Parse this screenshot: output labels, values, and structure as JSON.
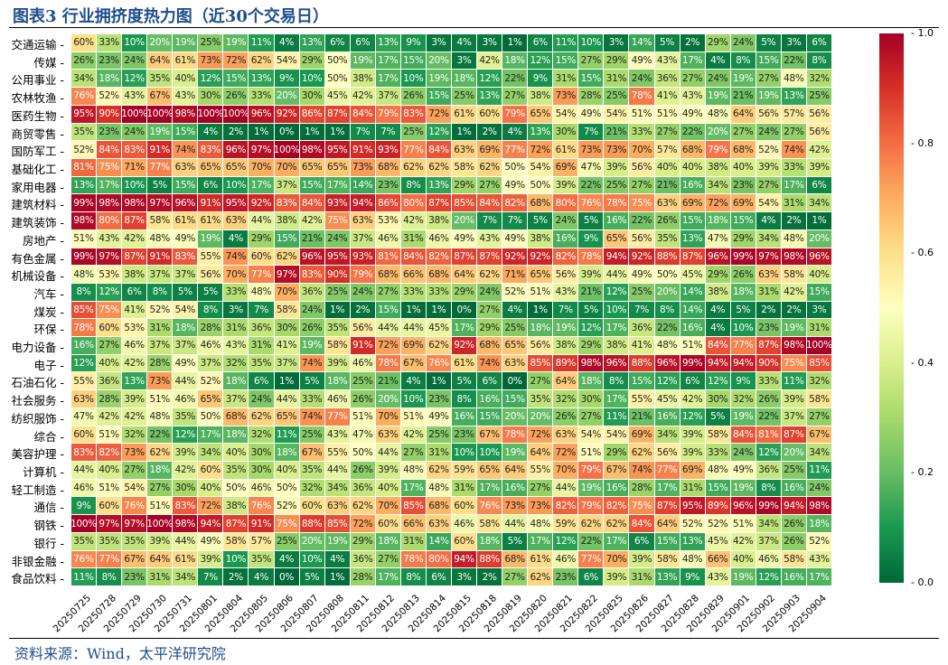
{
  "header": {
    "title": "图表3 行业拥挤度热力图（近30个交易日）"
  },
  "footer": {
    "source": "资料来源：Wind，太平洋研究院"
  },
  "chart_data": {
    "type": "heatmap",
    "title": "",
    "colormap": "RdYlGn_r",
    "vrange": [
      0,
      1
    ],
    "colorbar_ticks": [
      "0.0",
      "0.2",
      "0.4",
      "0.6",
      "0.8",
      "1.0"
    ],
    "x": [
      "20250725",
      "20250728",
      "20250729",
      "20250730",
      "20250731",
      "20250801",
      "20250804",
      "20250805",
      "20250806",
      "20250807",
      "20250808",
      "20250811",
      "20250812",
      "20250813",
      "20250814",
      "20250815",
      "20250818",
      "20250819",
      "20250820",
      "20250821",
      "20250822",
      "20250825",
      "20250826",
      "20250827",
      "20250828",
      "20250829",
      "20250901",
      "20250902",
      "20250903",
      "20250904"
    ],
    "y": [
      "交通运输",
      "传媒",
      "公用事业",
      "农林牧渔",
      "医药生物",
      "商贸零售",
      "国防军工",
      "基础化工",
      "家用电器",
      "建筑材料",
      "建筑装饰",
      "房地产",
      "有色金属",
      "机械设备",
      "汽车",
      "煤炭",
      "环保",
      "电力设备",
      "电子",
      "石油石化",
      "社会服务",
      "纺织服饰",
      "综合",
      "美容护理",
      "计算机",
      "轻工制造",
      "通信",
      "钢铁",
      "银行",
      "非银金融",
      "食品饮料"
    ],
    "values_pct": [
      [
        60,
        33,
        10,
        20,
        19,
        25,
        19,
        11,
        4,
        13,
        6,
        6,
        13,
        9,
        3,
        4,
        3,
        1,
        6,
        11,
        10,
        3,
        14,
        5,
        2,
        29,
        24,
        5,
        3,
        6
      ],
      [
        26,
        23,
        24,
        64,
        61,
        73,
        72,
        62,
        54,
        29,
        50,
        19,
        17,
        15,
        20,
        3,
        42,
        18,
        12,
        15,
        27,
        29,
        49,
        43,
        17,
        4,
        8,
        15,
        22,
        8
      ],
      [
        34,
        18,
        12,
        35,
        40,
        12,
        15,
        13,
        9,
        10,
        50,
        38,
        17,
        10,
        19,
        18,
        12,
        22,
        9,
        31,
        15,
        31,
        24,
        36,
        27,
        24,
        19,
        27,
        48,
        32
      ],
      [
        76,
        52,
        43,
        67,
        43,
        30,
        26,
        33,
        20,
        30,
        45,
        42,
        37,
        26,
        15,
        25,
        13,
        27,
        38,
        73,
        28,
        25,
        78,
        41,
        43,
        19,
        21,
        19,
        13,
        25
      ],
      [
        95,
        90,
        100,
        100,
        98,
        100,
        100,
        96,
        92,
        86,
        87,
        84,
        79,
        83,
        72,
        61,
        60,
        79,
        65,
        54,
        49,
        54,
        51,
        51,
        49,
        48,
        64,
        56,
        57,
        56
      ],
      [
        35,
        23,
        24,
        19,
        15,
        4,
        2,
        1,
        0,
        1,
        1,
        7,
        7,
        25,
        12,
        1,
        2,
        4,
        13,
        30,
        7,
        21,
        33,
        27,
        22,
        20,
        27,
        24,
        27,
        56
      ],
      [
        52,
        84,
        83,
        91,
        74,
        83,
        96,
        97,
        100,
        98,
        95,
        91,
        93,
        77,
        84,
        63,
        69,
        77,
        72,
        61,
        73,
        73,
        70,
        57,
        68,
        79,
        68,
        52,
        74,
        42
      ],
      [
        81,
        75,
        71,
        77,
        63,
        65,
        65,
        70,
        70,
        65,
        65,
        73,
        68,
        62,
        62,
        58,
        62,
        50,
        54,
        69,
        47,
        39,
        56,
        40,
        40,
        38,
        40,
        39,
        33,
        39
      ],
      [
        13,
        17,
        10,
        5,
        15,
        6,
        10,
        17,
        37,
        15,
        17,
        14,
        23,
        8,
        13,
        29,
        27,
        49,
        50,
        39,
        22,
        25,
        27,
        21,
        16,
        34,
        23,
        27,
        17,
        6
      ],
      [
        99,
        98,
        98,
        97,
        96,
        91,
        95,
        92,
        83,
        84,
        93,
        94,
        86,
        80,
        87,
        85,
        84,
        82,
        68,
        80,
        76,
        78,
        75,
        63,
        69,
        72,
        69,
        54,
        31,
        34
      ],
      [
        98,
        80,
        87,
        58,
        61,
        61,
        63,
        44,
        38,
        42,
        75,
        63,
        53,
        42,
        38,
        20,
        7,
        7,
        5,
        24,
        5,
        16,
        22,
        26,
        15,
        18,
        15,
        4,
        2,
        1
      ],
      [
        51,
        43,
        42,
        48,
        49,
        19,
        4,
        29,
        15,
        21,
        24,
        37,
        46,
        31,
        46,
        49,
        43,
        49,
        38,
        16,
        9,
        65,
        56,
        35,
        13,
        47,
        29,
        34,
        48,
        20
      ],
      [
        99,
        97,
        87,
        91,
        83,
        55,
        74,
        60,
        62,
        96,
        95,
        93,
        81,
        84,
        82,
        87,
        87,
        92,
        92,
        82,
        78,
        94,
        92,
        88,
        87,
        96,
        99,
        97,
        98,
        96
      ],
      [
        48,
        53,
        38,
        37,
        37,
        56,
        70,
        77,
        97,
        83,
        90,
        79,
        68,
        66,
        68,
        64,
        62,
        71,
        65,
        56,
        39,
        44,
        49,
        50,
        45,
        29,
        26,
        63,
        58,
        40
      ],
      [
        8,
        12,
        6,
        8,
        5,
        5,
        33,
        48,
        70,
        36,
        25,
        24,
        27,
        33,
        33,
        29,
        24,
        52,
        51,
        43,
        21,
        12,
        25,
        20,
        14,
        38,
        18,
        31,
        42,
        15
      ],
      [
        85,
        75,
        41,
        52,
        54,
        8,
        3,
        7,
        58,
        24,
        1,
        2,
        15,
        1,
        1,
        0,
        27,
        4,
        1,
        7,
        5,
        10,
        7,
        8,
        14,
        4,
        5,
        2,
        2,
        3
      ],
      [
        78,
        60,
        53,
        31,
        18,
        28,
        31,
        36,
        30,
        26,
        35,
        56,
        44,
        44,
        45,
        17,
        29,
        25,
        18,
        19,
        12,
        17,
        36,
        22,
        16,
        4,
        10,
        23,
        19,
        31
      ],
      [
        16,
        27,
        46,
        37,
        37,
        46,
        43,
        31,
        41,
        19,
        58,
        91,
        72,
        69,
        62,
        92,
        68,
        65,
        56,
        38,
        29,
        38,
        41,
        48,
        51,
        84,
        77,
        87,
        98,
        100
      ],
      [
        12,
        40,
        42,
        28,
        49,
        37,
        32,
        35,
        37,
        74,
        39,
        46,
        78,
        67,
        76,
        61,
        74,
        63,
        85,
        89,
        98,
        96,
        88,
        96,
        99,
        94,
        94,
        90,
        75,
        85
      ],
      [
        55,
        36,
        13,
        73,
        44,
        52,
        18,
        6,
        1,
        5,
        18,
        25,
        21,
        4,
        1,
        5,
        6,
        0,
        27,
        64,
        18,
        8,
        15,
        12,
        6,
        12,
        9,
        33,
        11,
        32
      ],
      [
        63,
        28,
        39,
        51,
        46,
        65,
        37,
        24,
        44,
        33,
        46,
        26,
        20,
        10,
        23,
        8,
        16,
        15,
        35,
        32,
        30,
        17,
        55,
        45,
        42,
        30,
        32,
        26,
        39,
        58
      ],
      [
        47,
        42,
        42,
        48,
        35,
        50,
        68,
        62,
        65,
        74,
        77,
        51,
        70,
        51,
        49,
        16,
        15,
        20,
        20,
        26,
        27,
        11,
        21,
        16,
        12,
        5,
        19,
        22,
        37,
        27
      ],
      [
        60,
        51,
        32,
        22,
        12,
        17,
        18,
        32,
        11,
        25,
        43,
        47,
        63,
        42,
        25,
        23,
        67,
        78,
        72,
        63,
        54,
        54,
        69,
        34,
        39,
        58,
        84,
        81,
        87,
        67
      ],
      [
        83,
        82,
        73,
        62,
        39,
        34,
        40,
        30,
        18,
        67,
        55,
        50,
        44,
        27,
        31,
        10,
        10,
        19,
        64,
        72,
        51,
        29,
        62,
        56,
        39,
        33,
        24,
        12,
        20,
        34
      ],
      [
        44,
        40,
        27,
        18,
        42,
        60,
        35,
        30,
        40,
        35,
        44,
        26,
        39,
        48,
        62,
        59,
        65,
        64,
        55,
        70,
        79,
        67,
        74,
        77,
        69,
        48,
        49,
        36,
        25,
        11
      ],
      [
        46,
        51,
        54,
        27,
        30,
        40,
        50,
        46,
        50,
        32,
        34,
        36,
        40,
        17,
        48,
        31,
        17,
        16,
        27,
        44,
        19,
        16,
        28,
        17,
        31,
        15,
        19,
        8,
        16,
        24
      ],
      [
        9,
        60,
        76,
        51,
        83,
        72,
        38,
        76,
        52,
        60,
        63,
        62,
        70,
        85,
        68,
        60,
        76,
        73,
        73,
        82,
        79,
        82,
        75,
        87,
        95,
        89,
        96,
        99,
        94,
        98
      ],
      [
        100,
        97,
        97,
        100,
        98,
        94,
        87,
        91,
        75,
        88,
        85,
        72,
        60,
        66,
        63,
        46,
        58,
        44,
        48,
        59,
        62,
        62,
        84,
        64,
        52,
        52,
        51,
        34,
        26,
        18
      ],
      [
        35,
        35,
        35,
        39,
        44,
        49,
        58,
        57,
        25,
        20,
        19,
        29,
        18,
        31,
        14,
        60,
        18,
        5,
        17,
        12,
        22,
        17,
        6,
        15,
        13,
        45,
        42,
        37,
        26,
        52
      ],
      [
        76,
        77,
        67,
        64,
        61,
        39,
        10,
        35,
        4,
        10,
        4,
        36,
        27,
        78,
        80,
        94,
        88,
        68,
        61,
        46,
        77,
        70,
        39,
        58,
        48,
        66,
        40,
        46,
        58,
        43
      ],
      [
        11,
        8,
        23,
        31,
        34,
        7,
        2,
        4,
        0,
        5,
        1,
        28,
        17,
        8,
        6,
        3,
        2,
        27,
        62,
        23,
        6,
        39,
        31,
        13,
        9,
        43,
        19,
        12,
        16,
        17
      ]
    ]
  }
}
